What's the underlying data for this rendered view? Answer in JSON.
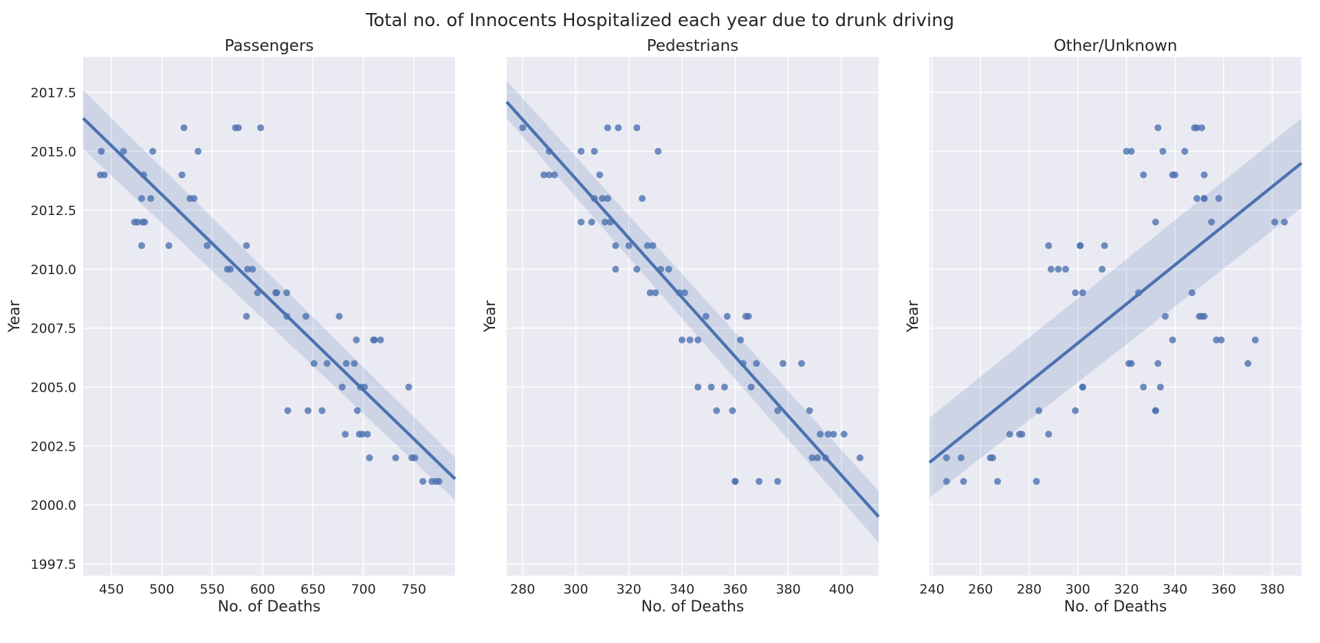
{
  "chart_data": {
    "type": "scatter",
    "title": "Total no. of Innocents Hospitalized each year due to drunk driving",
    "sharey": true,
    "ylim": [
      1997,
      2019
    ],
    "yticks": [
      "1997.5",
      "2000.0",
      "2002.5",
      "2005.0",
      "2007.5",
      "2010.0",
      "2012.5",
      "2015.0",
      "2017.5"
    ],
    "ylabel": "Year",
    "colors": {
      "points": "#4c72b0",
      "line": "#4c72b0",
      "background": "#eaeaf2",
      "grid": "#ffffff"
    },
    "panels": [
      {
        "title": "Passengers",
        "xlabel": "No. of Deaths",
        "xlim": [
          422,
          791
        ],
        "xticks": [
          "450",
          "500",
          "550",
          "600",
          "650",
          "700",
          "750"
        ],
        "regression": {
          "x": [
            422,
            791
          ],
          "y": [
            2016.4,
            2001.1
          ],
          "band_lower_start": 2015.1,
          "band_upper_start": 2017.6,
          "band_lower_end": 2000.2,
          "band_upper_end": 2002.0
        },
        "points": [
          [
            440,
            2015
          ],
          [
            439,
            2014
          ],
          [
            443,
            2014
          ],
          [
            462,
            2015
          ],
          [
            491,
            2015
          ],
          [
            482,
            2014
          ],
          [
            480,
            2013
          ],
          [
            489,
            2013
          ],
          [
            473,
            2012
          ],
          [
            476,
            2012
          ],
          [
            481,
            2012
          ],
          [
            483,
            2012
          ],
          [
            480,
            2011
          ],
          [
            507,
            2011
          ],
          [
            520,
            2014
          ],
          [
            522,
            2016
          ],
          [
            528,
            2013
          ],
          [
            532,
            2013
          ],
          [
            536,
            2015
          ],
          [
            545,
            2011
          ],
          [
            565,
            2010
          ],
          [
            568,
            2010
          ],
          [
            573,
            2016
          ],
          [
            576,
            2016
          ],
          [
            598,
            2016
          ],
          [
            584,
            2011
          ],
          [
            585,
            2010
          ],
          [
            590,
            2010
          ],
          [
            595,
            2009
          ],
          [
            584,
            2008
          ],
          [
            613,
            2009
          ],
          [
            614,
            2009
          ],
          [
            624,
            2009
          ],
          [
            624,
            2008
          ],
          [
            643,
            2008
          ],
          [
            651,
            2006
          ],
          [
            664,
            2006
          ],
          [
            676,
            2008
          ],
          [
            679,
            2005
          ],
          [
            683,
            2006
          ],
          [
            691,
            2006
          ],
          [
            693,
            2007
          ],
          [
            710,
            2007
          ],
          [
            711,
            2007
          ],
          [
            717,
            2007
          ],
          [
            625,
            2004
          ],
          [
            645,
            2004
          ],
          [
            659,
            2004
          ],
          [
            694,
            2004
          ],
          [
            682,
            2003
          ],
          [
            696,
            2003
          ],
          [
            699,
            2003
          ],
          [
            704,
            2003
          ],
          [
            697,
            2005
          ],
          [
            701,
            2005
          ],
          [
            706,
            2002
          ],
          [
            732,
            2002
          ],
          [
            745,
            2005
          ],
          [
            748,
            2002
          ],
          [
            751,
            2002
          ],
          [
            759,
            2001
          ],
          [
            768,
            2001
          ],
          [
            772,
            2001
          ],
          [
            775,
            2001
          ]
        ]
      },
      {
        "title": "Pedestrians",
        "xlabel": "No. of Deaths",
        "xlim": [
          274,
          414
        ],
        "xticks": [
          "280",
          "300",
          "320",
          "340",
          "360",
          "380",
          "400"
        ],
        "regression": {
          "x": [
            274,
            414
          ],
          "y": [
            2017.1,
            1999.5
          ],
          "band_lower_start": 2016.4,
          "band_upper_start": 2018.0,
          "band_lower_end": 1998.4,
          "band_upper_end": 2000.6
        },
        "points": [
          [
            280,
            2016
          ],
          [
            288,
            2014
          ],
          [
            290,
            2015
          ],
          [
            290,
            2014
          ],
          [
            292,
            2014
          ],
          [
            302,
            2015
          ],
          [
            307,
            2015
          ],
          [
            302,
            2012
          ],
          [
            306,
            2012
          ],
          [
            307,
            2013
          ],
          [
            309,
            2014
          ],
          [
            310,
            2013
          ],
          [
            312,
            2013
          ],
          [
            312,
            2016
          ],
          [
            316,
            2016
          ],
          [
            323,
            2016
          ],
          [
            311,
            2012
          ],
          [
            313,
            2012
          ],
          [
            315,
            2011
          ],
          [
            315,
            2010
          ],
          [
            320,
            2011
          ],
          [
            323,
            2010
          ],
          [
            325,
            2013
          ],
          [
            327,
            2011
          ],
          [
            329,
            2011
          ],
          [
            328,
            2009
          ],
          [
            330,
            2009
          ],
          [
            331,
            2015
          ],
          [
            332,
            2010
          ],
          [
            335,
            2010
          ],
          [
            339,
            2009
          ],
          [
            341,
            2009
          ],
          [
            340,
            2007
          ],
          [
            343,
            2007
          ],
          [
            346,
            2007
          ],
          [
            346,
            2005
          ],
          [
            349,
            2008
          ],
          [
            351,
            2005
          ],
          [
            353,
            2004
          ],
          [
            356,
            2005
          ],
          [
            357,
            2008
          ],
          [
            359,
            2004
          ],
          [
            360,
            2001
          ],
          [
            360,
            2001
          ],
          [
            362,
            2007
          ],
          [
            363,
            2006
          ],
          [
            364,
            2008
          ],
          [
            365,
            2008
          ],
          [
            366,
            2005
          ],
          [
            368,
            2006
          ],
          [
            369,
            2001
          ],
          [
            376,
            2004
          ],
          [
            376,
            2001
          ],
          [
            378,
            2006
          ],
          [
            385,
            2006
          ],
          [
            388,
            2004
          ],
          [
            389,
            2002
          ],
          [
            391,
            2002
          ],
          [
            392,
            2003
          ],
          [
            394,
            2002
          ],
          [
            395,
            2003
          ],
          [
            397,
            2003
          ],
          [
            401,
            2003
          ],
          [
            407,
            2002
          ]
        ]
      },
      {
        "title": "Other/Unknown",
        "xlabel": "No. of Deaths",
        "xlim": [
          239,
          392
        ],
        "xticks": [
          "240",
          "260",
          "280",
          "300",
          "320",
          "340",
          "360",
          "380"
        ],
        "regression": {
          "x": [
            239,
            392
          ],
          "y": [
            2001.8,
            2014.5
          ],
          "band_lower_start": 2000.3,
          "band_upper_start": 2003.7,
          "band_lower_end": 2012.6,
          "band_upper_end": 2016.4
        },
        "points": [
          [
            246,
            2002
          ],
          [
            246,
            2001
          ],
          [
            252,
            2002
          ],
          [
            253,
            2001
          ],
          [
            264,
            2002
          ],
          [
            265,
            2002
          ],
          [
            267,
            2001
          ],
          [
            272,
            2003
          ],
          [
            276,
            2003
          ],
          [
            277,
            2003
          ],
          [
            283,
            2001
          ],
          [
            284,
            2004
          ],
          [
            288,
            2003
          ],
          [
            288,
            2011
          ],
          [
            289,
            2010
          ],
          [
            292,
            2010
          ],
          [
            295,
            2010
          ],
          [
            299,
            2009
          ],
          [
            299,
            2004
          ],
          [
            301,
            2011
          ],
          [
            301,
            2011
          ],
          [
            302,
            2009
          ],
          [
            302,
            2005
          ],
          [
            302,
            2005
          ],
          [
            310,
            2010
          ],
          [
            311,
            2011
          ],
          [
            320,
            2015
          ],
          [
            321,
            2006
          ],
          [
            322,
            2006
          ],
          [
            322,
            2015
          ],
          [
            325,
            2009
          ],
          [
            327,
            2014
          ],
          [
            327,
            2005
          ],
          [
            332,
            2012
          ],
          [
            332,
            2004
          ],
          [
            332,
            2004
          ],
          [
            333,
            2016
          ],
          [
            333,
            2006
          ],
          [
            334,
            2005
          ],
          [
            335,
            2015
          ],
          [
            336,
            2008
          ],
          [
            339,
            2007
          ],
          [
            339,
            2014
          ],
          [
            340,
            2014
          ],
          [
            344,
            2015
          ],
          [
            347,
            2009
          ],
          [
            348,
            2016
          ],
          [
            349,
            2016
          ],
          [
            349,
            2013
          ],
          [
            350,
            2008
          ],
          [
            351,
            2008
          ],
          [
            351,
            2016
          ],
          [
            352,
            2013
          ],
          [
            352,
            2014
          ],
          [
            352,
            2013
          ],
          [
            352,
            2008
          ],
          [
            355,
            2012
          ],
          [
            357,
            2007
          ],
          [
            358,
            2013
          ],
          [
            359,
            2007
          ],
          [
            370,
            2006
          ],
          [
            373,
            2007
          ],
          [
            381,
            2012
          ],
          [
            385,
            2012
          ]
        ]
      }
    ]
  }
}
